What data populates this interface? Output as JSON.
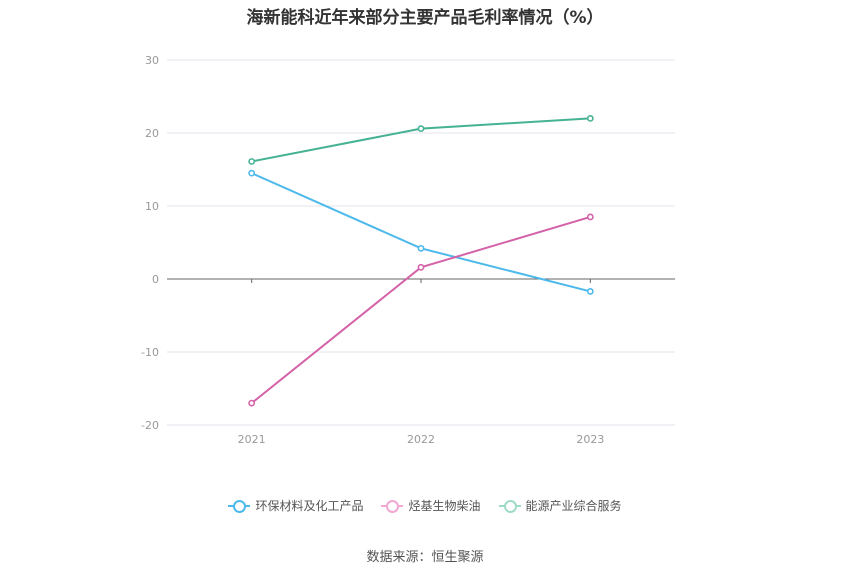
{
  "chart_data": {
    "type": "line",
    "title": "海新能科近年来部分主要产品毛利率情况（%）",
    "categories": [
      "2021",
      "2022",
      "2023"
    ],
    "yticks": [
      30,
      20,
      10,
      0,
      -10,
      -20
    ],
    "ylim": [
      -20,
      30
    ],
    "series": [
      {
        "name": "环保材料及化工产品",
        "values": [
          14.5,
          4.2,
          -1.7
        ],
        "color": "#4cb9eb"
      },
      {
        "name": "烃基生物柴油",
        "values": [
          -17.0,
          1.6,
          8.5
        ],
        "color": "#d462a8"
      },
      {
        "name": "能源产业综合服务",
        "values": [
          16.1,
          20.6,
          22.0
        ],
        "color": "#45b293"
      }
    ],
    "legend_position": "bottom",
    "grid": true
  },
  "source": "数据来源：恒生聚源"
}
